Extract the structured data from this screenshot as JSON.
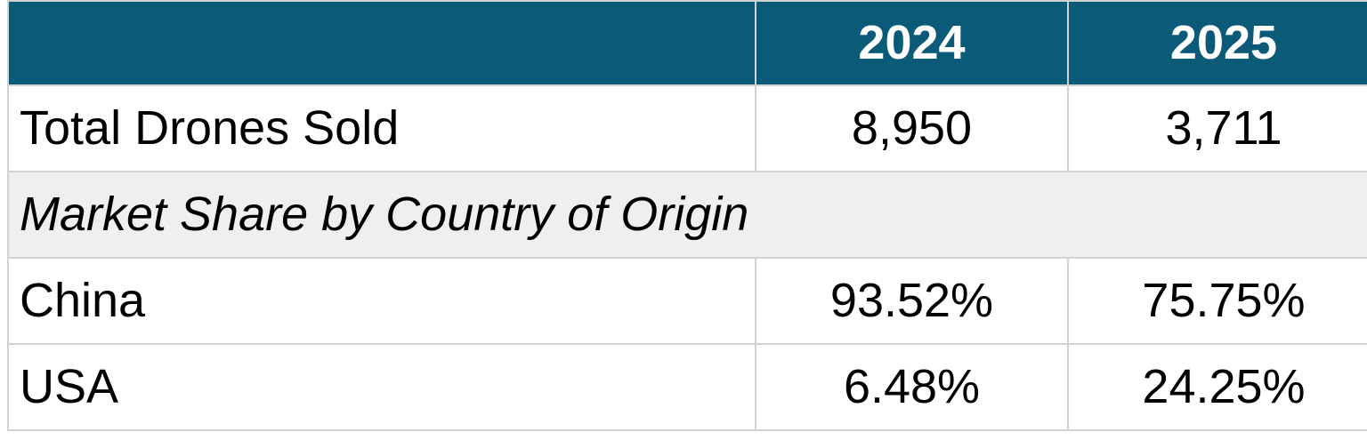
{
  "table": {
    "style": {
      "header_bg": "#0a5a78",
      "header_text_color": "#ffffff",
      "section_row_bg": "#efefef",
      "border_color": "#d2d2d2",
      "body_text_color": "#000000"
    },
    "header": {
      "col0": "",
      "col1": "2024",
      "col2": "2025"
    },
    "rows": [
      {
        "label": "Total Drones Sold",
        "y2024": "8,950",
        "y2025": "3,711"
      },
      {
        "label": "Market Share by Country of Origin"
      },
      {
        "label": "China",
        "y2024": "93.52%",
        "y2025": "75.75%"
      },
      {
        "label": "USA",
        "y2024": "6.48%",
        "y2025": "24.25%"
      }
    ]
  },
  "chart_data": {
    "type": "table",
    "columns": [
      "",
      "2024",
      "2025"
    ],
    "rows": [
      [
        "Total Drones Sold",
        "8,950",
        "3,711"
      ],
      [
        "Market Share by Country of Origin",
        "",
        ""
      ],
      [
        "China",
        "93.52%",
        "75.75%"
      ],
      [
        "USA",
        "6.48%",
        "24.25%"
      ]
    ]
  }
}
